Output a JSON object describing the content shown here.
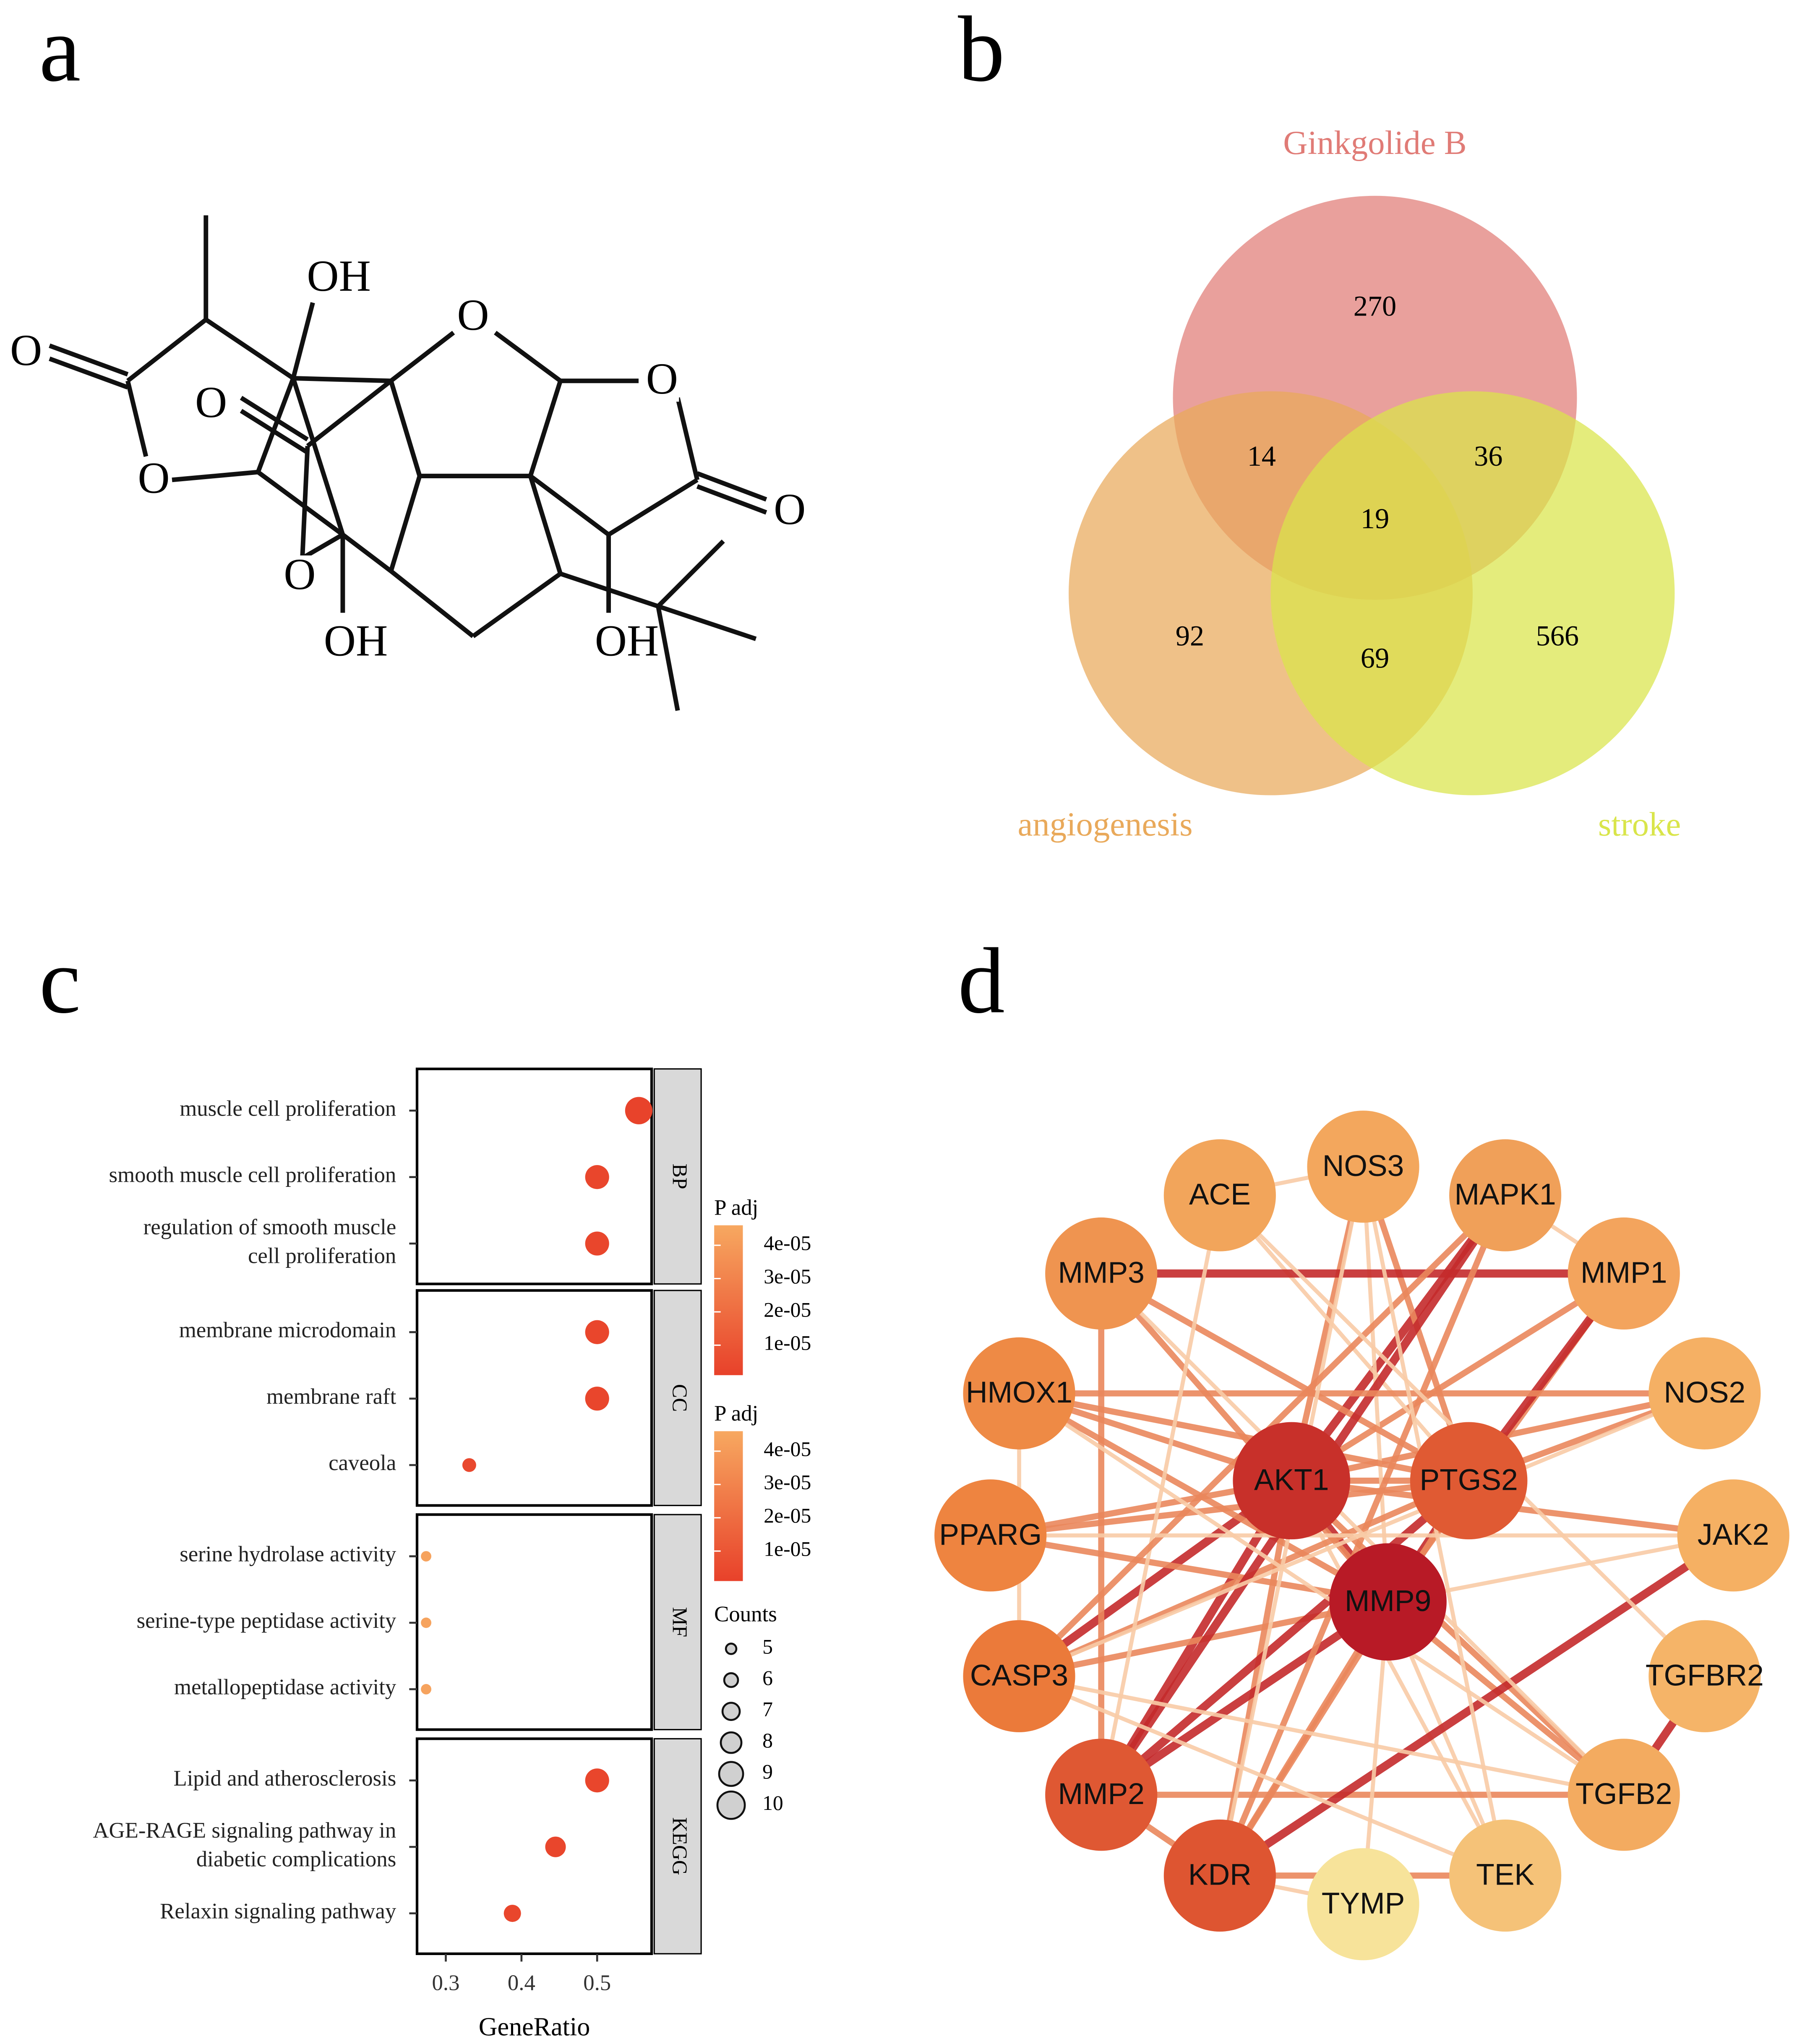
{
  "panel_labels": [
    "a",
    "b",
    "c",
    "d"
  ],
  "molecule": {
    "atom_labels": [
      "OH",
      "O",
      "O",
      "O",
      "O",
      "O",
      "O",
      "O",
      "OH",
      "OH"
    ]
  },
  "chart_data": [
    {
      "type": "venn",
      "sets": [
        {
          "name": "Ginkgolide B",
          "color": "#e07b76"
        },
        {
          "name": "angiogenesis",
          "color": "#e9a95a"
        },
        {
          "name": "stroke",
          "color": "#d9e54a"
        }
      ],
      "values": [
        270,
        92,
        566,
        14,
        36,
        69,
        19
      ]
    },
    {
      "type": "dot",
      "facets": [
        {
          "name": "BP",
          "categories": [
            [
              "muscle cell proliferation"
            ],
            [
              "smooth muscle cell proliferation"
            ],
            [
              "regulation of smooth muscle",
              "cell proliferation"
            ]
          ],
          "x": [
            0.555,
            0.5,
            0.5
          ],
          "padj": [
            2e-06,
            3e-06,
            3e-06
          ],
          "counts": [
            10,
            9,
            9
          ]
        },
        {
          "name": "CC",
          "categories": [
            [
              "membrane microdomain"
            ],
            [
              "membrane raft"
            ],
            [
              "caveola"
            ]
          ],
          "x": [
            0.5,
            0.5,
            0.331
          ],
          "padj": [
            3e-06,
            3e-06,
            4e-06
          ],
          "counts": [
            9,
            9,
            6
          ]
        },
        {
          "name": "MF",
          "categories": [
            [
              "serine hydrolase activity"
            ],
            [
              "serine-type peptidase activity"
            ],
            [
              "metallopeptidase activity"
            ]
          ],
          "x": [
            0.274,
            0.274,
            0.274
          ],
          "padj": [
            4.4e-05,
            4.4e-05,
            4.4e-05
          ],
          "counts": [
            5,
            5,
            5
          ]
        },
        {
          "name": "KEGG",
          "categories": [
            [
              "Lipid and atherosclerosis"
            ],
            [
              "AGE-RAGE signaling pathway in",
              "diabetic complications"
            ],
            [
              "Relaxin signaling pathway"
            ]
          ],
          "x": [
            0.5,
            0.445,
            0.388
          ],
          "padj": [
            3e-06,
            3e-06,
            3e-06
          ],
          "counts": [
            9,
            8,
            7
          ]
        }
      ],
      "xlabel": "GeneRatio",
      "xlim": [
        0.262,
        0.572
      ],
      "xticks": [
        0.3,
        0.4,
        0.5
      ],
      "color_low": "#e8412a",
      "color_high": "#f7a860",
      "color_legends": [
        {
          "title": "P adj",
          "lim": [
            1e-06,
            4.6e-05
          ],
          "ticks": [
            {
              "value": 4e-05,
              "label": "4e-05"
            },
            {
              "value": 3e-05,
              "label": "3e-05"
            },
            {
              "value": 2e-05,
              "label": "2e-05"
            },
            {
              "value": 1e-05,
              "label": "1e-05"
            }
          ]
        },
        {
          "title": "P adj",
          "lim": [
            1e-06,
            4.6e-05
          ],
          "ticks": [
            {
              "value": 4e-05,
              "label": "4e-05"
            },
            {
              "value": 3e-05,
              "label": "3e-05"
            },
            {
              "value": 2e-05,
              "label": "2e-05"
            },
            {
              "value": 1e-05,
              "label": "1e-05"
            }
          ]
        }
      ],
      "size_legend": {
        "title": "Counts",
        "values": [
          5,
          6,
          7,
          8,
          9,
          10
        ]
      }
    }
  ],
  "network": {
    "nodes": [
      {
        "label": "NOS3",
        "color": "#f3a75d"
      },
      {
        "label": "ACE",
        "color": "#f2a55b"
      },
      {
        "label": "MAPK1",
        "color": "#f0a059"
      },
      {
        "label": "MMP3",
        "color": "#ef9450"
      },
      {
        "label": "MMP1",
        "color": "#f3a45d"
      },
      {
        "label": "HMOX1",
        "color": "#ee8a45"
      },
      {
        "label": "NOS2",
        "color": "#f5b064"
      },
      {
        "label": "AKT1",
        "color": "#c8302a"
      },
      {
        "label": "PTGS2",
        "color": "#e05a33"
      },
      {
        "label": "PPARG",
        "color": "#ee8440"
      },
      {
        "label": "JAK2",
        "color": "#f5b063"
      },
      {
        "label": "MMP9",
        "color": "#b81a26"
      },
      {
        "label": "CASP3",
        "color": "#eb7a3a"
      },
      {
        "label": "TGFBR2",
        "color": "#f5b468"
      },
      {
        "label": "MMP2",
        "color": "#df5833"
      },
      {
        "label": "TGFB2",
        "color": "#f3ab60"
      },
      {
        "label": "KDR",
        "color": "#de5531"
      },
      {
        "label": "TEK",
        "color": "#f5c278"
      },
      {
        "label": "TYMP",
        "color": "#f7e39a"
      }
    ],
    "edge_colors": [
      "#f8cba6",
      "#ea875c",
      "#c42a2b"
    ],
    "edges": [
      [
        "AKT1",
        "MMP9",
        3
      ],
      [
        "AKT1",
        "PTGS2",
        2
      ],
      [
        "PTGS2",
        "MMP9",
        3
      ],
      [
        "AKT1",
        "MAPK1",
        3
      ],
      [
        "AKT1",
        "NOS3",
        2
      ],
      [
        "AKT1",
        "MMP2",
        3
      ],
      [
        "AKT1",
        "CASP3",
        3
      ],
      [
        "AKT1",
        "HMOX1",
        2
      ],
      [
        "AKT1",
        "PPARG",
        2
      ],
      [
        "AKT1",
        "KDR",
        2
      ],
      [
        "AKT1",
        "MMP1",
        2
      ],
      [
        "AKT1",
        "NOS2",
        2
      ],
      [
        "AKT1",
        "JAK2",
        2
      ],
      [
        "AKT1",
        "TEK",
        1
      ],
      [
        "AKT1",
        "TGFB2",
        2
      ],
      [
        "MMP9",
        "MMP2",
        3
      ],
      [
        "MMP9",
        "MMP1",
        2
      ],
      [
        "MMP9",
        "MMP3",
        2
      ],
      [
        "MMP9",
        "KDR",
        2
      ],
      [
        "MMP9",
        "CASP3",
        2
      ],
      [
        "MMP9",
        "TGFB2",
        2
      ],
      [
        "MMP9",
        "HMOX1",
        2
      ],
      [
        "MMP9",
        "PPARG",
        2
      ],
      [
        "MMP9",
        "NOS3",
        1
      ],
      [
        "MMP9",
        "TEK",
        1
      ],
      [
        "MMP9",
        "JAK2",
        1
      ],
      [
        "PTGS2",
        "MMP2",
        3
      ],
      [
        "PTGS2",
        "MMP1",
        3
      ],
      [
        "PTGS2",
        "CASP3",
        2
      ],
      [
        "PTGS2",
        "PPARG",
        2
      ],
      [
        "PTGS2",
        "HMOX1",
        2
      ],
      [
        "PTGS2",
        "NOS2",
        2
      ],
      [
        "PTGS2",
        "MMP3",
        2
      ],
      [
        "PTGS2",
        "ACE",
        1
      ],
      [
        "PTGS2",
        "KDR",
        2
      ],
      [
        "PTGS2",
        "NOS3",
        2
      ],
      [
        "MMP3",
        "MMP1",
        3
      ],
      [
        "MMP2",
        "KDR",
        2
      ],
      [
        "MMP2",
        "TGFB2",
        2
      ],
      [
        "MMP2",
        "MMP3",
        2
      ],
      [
        "MMP2",
        "MAPK1",
        3
      ],
      [
        "KDR",
        "TEK",
        2
      ],
      [
        "KDR",
        "JAK2",
        3
      ],
      [
        "TGFBR2",
        "TGFB2",
        3
      ],
      [
        "HMOX1",
        "NOS2",
        2
      ],
      [
        "NOS3",
        "KDR",
        1
      ],
      [
        "NOS3",
        "ACE",
        1
      ],
      [
        "ACE",
        "MMP2",
        1
      ],
      [
        "MAPK1",
        "KDR",
        2
      ],
      [
        "MAPK1",
        "CASP3",
        2
      ],
      [
        "MAPK1",
        "MMP1",
        1
      ],
      [
        "CASP3",
        "TEK",
        1
      ],
      [
        "PPARG",
        "JAK2",
        1
      ],
      [
        "HMOX1",
        "CASP3",
        1
      ],
      [
        "NOS2",
        "CASP3",
        1
      ],
      [
        "TYMP",
        "MMP9",
        1
      ],
      [
        "TYMP",
        "KDR",
        1
      ],
      [
        "MMP3",
        "TGFB2",
        1
      ],
      [
        "ACE",
        "TGFBR2",
        1
      ],
      [
        "NOS3",
        "TEK",
        1
      ],
      [
        "HMOX1",
        "TGFB2",
        1
      ],
      [
        "CASP3",
        "TGFB2",
        1
      ]
    ]
  }
}
